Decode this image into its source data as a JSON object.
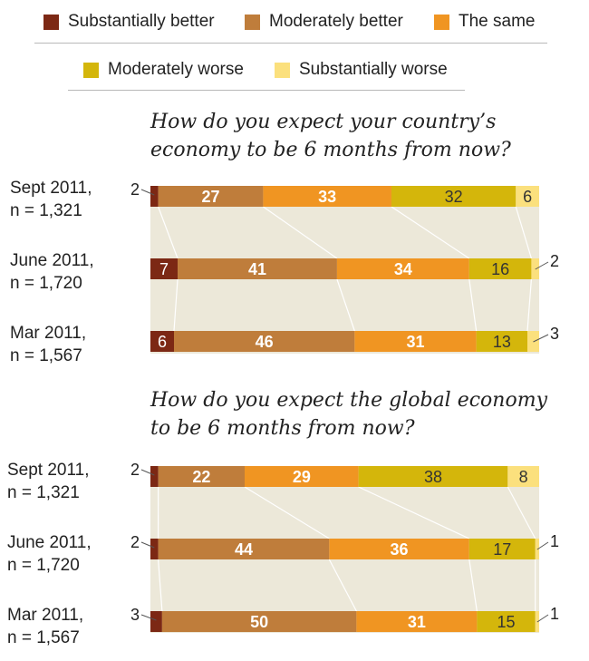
{
  "legend": {
    "items": [
      {
        "label": "Substantially better",
        "color": "#7c2814"
      },
      {
        "label": "Moderately better",
        "color": "#bf7d3b"
      },
      {
        "label": "The same",
        "color": "#f09522"
      },
      {
        "label": "Moderately worse",
        "color": "#d4b60b"
      },
      {
        "label": "Substantially worse",
        "color": "#fbe07d"
      }
    ]
  },
  "chart_data": [
    {
      "type": "bar",
      "stacked": true,
      "orientation": "horizontal",
      "title": "How do you expect your country’s economy to be 6 months from now?",
      "title_lines": [
        "How do you expect your country’s",
        "economy to be 6 months from now?"
      ],
      "categories": [
        "Sept 2011, n = 1,321",
        "June 2011, n = 1,720",
        "Mar 2011, n = 1,567"
      ],
      "category_lines": [
        [
          "Sept 2011,",
          "n = 1,321"
        ],
        [
          "June 2011,",
          "n = 1,720"
        ],
        [
          "Mar 2011,",
          "n = 1,567"
        ]
      ],
      "series": [
        {
          "name": "Substantially better",
          "values": [
            2,
            7,
            6
          ]
        },
        {
          "name": "Moderately better",
          "values": [
            27,
            41,
            46
          ]
        },
        {
          "name": "The same",
          "values": [
            33,
            34,
            31
          ]
        },
        {
          "name": "Moderately worse",
          "values": [
            32,
            16,
            13
          ]
        },
        {
          "name": "Substantially worse",
          "values": [
            6,
            2,
            3
          ]
        }
      ],
      "xlim": [
        0,
        100
      ],
      "grid": false
    },
    {
      "type": "bar",
      "stacked": true,
      "orientation": "horizontal",
      "title": "How do you expect the global economy to be 6 months from now?",
      "title_lines": [
        "How do you expect the global economy",
        "to be 6 months from now?"
      ],
      "categories": [
        "Sept 2011, n = 1,321",
        "June 2011, n = 1,720",
        "Mar 2011, n = 1,567"
      ],
      "category_lines": [
        [
          "Sept 2011,",
          "n = 1,321"
        ],
        [
          "June 2011,",
          "n = 1,720"
        ],
        [
          "Mar 2011,",
          "n = 1,567"
        ]
      ],
      "series": [
        {
          "name": "Substantially better",
          "values": [
            2,
            2,
            3
          ]
        },
        {
          "name": "Moderately better",
          "values": [
            22,
            44,
            50
          ]
        },
        {
          "name": "The same",
          "values": [
            29,
            36,
            31
          ]
        },
        {
          "name": "Moderately worse",
          "values": [
            38,
            17,
            15
          ]
        },
        {
          "name": "Substantially worse",
          "values": [
            8,
            1,
            1
          ]
        }
      ],
      "xlim": [
        0,
        100
      ],
      "grid": false
    }
  ]
}
